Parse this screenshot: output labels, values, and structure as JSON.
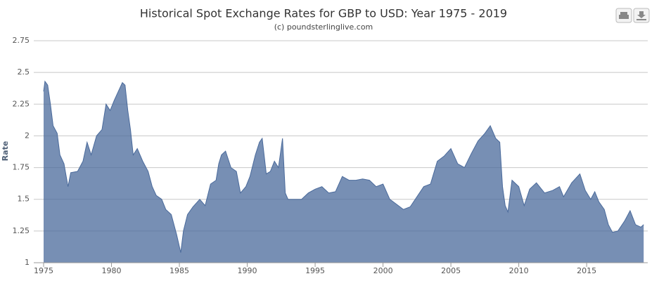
{
  "chart_data": {
    "type": "area",
    "title": "Historical Spot Exchange Rates for GBP to USD: Year 1975 - 2019",
    "subtitle": "(c) poundsterlinglive.com",
    "y_label": "Rate",
    "x": [
      1975.0,
      1975.1,
      1975.3,
      1975.5,
      1975.7,
      1976.0,
      1976.2,
      1976.5,
      1976.8,
      1977.0,
      1977.5,
      1977.9,
      1978.2,
      1978.5,
      1978.9,
      1979.3,
      1979.6,
      1979.9,
      1980.2,
      1980.5,
      1980.8,
      1981.0,
      1981.2,
      1981.4,
      1981.6,
      1981.9,
      1982.3,
      1982.7,
      1983.0,
      1983.3,
      1983.7,
      1984.0,
      1984.4,
      1984.8,
      1985.1,
      1985.3,
      1985.6,
      1986.0,
      1986.5,
      1986.9,
      1987.3,
      1987.7,
      1987.9,
      1988.1,
      1988.4,
      1988.8,
      1989.2,
      1989.5,
      1989.9,
      1990.2,
      1990.6,
      1990.9,
      1991.1,
      1991.4,
      1991.7,
      1992.0,
      1992.3,
      1992.6,
      1992.8,
      1993.0,
      1993.5,
      1994.0,
      1994.5,
      1995.0,
      1995.5,
      1996.0,
      1996.5,
      1997.0,
      1997.5,
      1998.0,
      1998.5,
      1999.0,
      1999.5,
      2000.0,
      2000.5,
      2001.0,
      2001.5,
      2002.0,
      2002.5,
      2003.0,
      2003.5,
      2004.0,
      2004.5,
      2005.0,
      2005.5,
      2006.0,
      2006.5,
      2007.0,
      2007.5,
      2007.9,
      2008.3,
      2008.6,
      2008.8,
      2009.0,
      2009.2,
      2009.5,
      2010.0,
      2010.4,
      2010.8,
      2011.3,
      2011.9,
      2012.5,
      2013.0,
      2013.3,
      2013.9,
      2014.5,
      2014.9,
      2015.3,
      2015.6,
      2015.9,
      2016.3,
      2016.6,
      2016.9,
      2017.3,
      2017.8,
      2018.2,
      2018.6,
      2019.0,
      2019.2
    ],
    "values": [
      2.35,
      2.43,
      2.4,
      2.25,
      2.08,
      2.02,
      1.85,
      1.78,
      1.6,
      1.71,
      1.72,
      1.8,
      1.95,
      1.85,
      2.0,
      2.05,
      2.25,
      2.2,
      2.28,
      2.35,
      2.42,
      2.4,
      2.2,
      2.05,
      1.85,
      1.9,
      1.8,
      1.72,
      1.6,
      1.53,
      1.5,
      1.42,
      1.38,
      1.22,
      1.08,
      1.25,
      1.38,
      1.44,
      1.5,
      1.45,
      1.62,
      1.65,
      1.78,
      1.85,
      1.88,
      1.75,
      1.72,
      1.55,
      1.6,
      1.68,
      1.85,
      1.95,
      1.98,
      1.7,
      1.72,
      1.8,
      1.75,
      1.98,
      1.55,
      1.5,
      1.5,
      1.5,
      1.55,
      1.58,
      1.6,
      1.55,
      1.56,
      1.68,
      1.65,
      1.65,
      1.66,
      1.65,
      1.6,
      1.62,
      1.5,
      1.46,
      1.42,
      1.44,
      1.52,
      1.6,
      1.62,
      1.8,
      1.84,
      1.9,
      1.78,
      1.75,
      1.86,
      1.96,
      2.02,
      2.08,
      1.98,
      1.95,
      1.6,
      1.45,
      1.4,
      1.65,
      1.6,
      1.45,
      1.58,
      1.63,
      1.55,
      1.57,
      1.6,
      1.52,
      1.63,
      1.7,
      1.57,
      1.5,
      1.56,
      1.48,
      1.42,
      1.3,
      1.24,
      1.25,
      1.33,
      1.41,
      1.3,
      1.28,
      1.3
    ],
    "color": "#4a6a9b",
    "xlim": [
      1975,
      2019.5
    ],
    "xticks": [
      1975,
      1980,
      1985,
      1990,
      1995,
      2000,
      2005,
      2010,
      2015
    ],
    "ylim": [
      1,
      2.75
    ],
    "yticks": [
      1,
      1.25,
      1.5,
      1.75,
      2,
      2.25,
      2.5,
      2.75
    ],
    "grid": true
  }
}
